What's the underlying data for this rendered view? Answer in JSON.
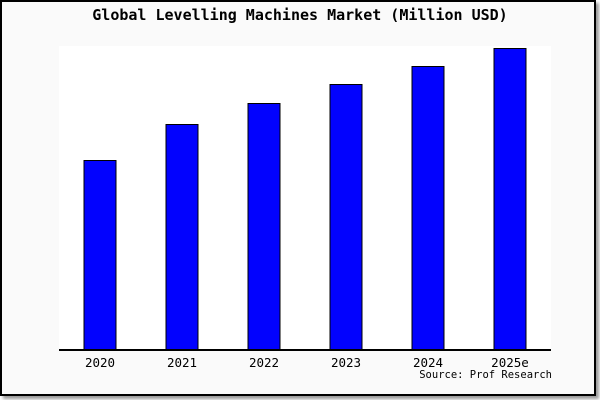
{
  "chart_data": {
    "type": "bar",
    "title": "Global Levelling Machines Market (Million USD)",
    "categories": [
      "2020",
      "2021",
      "2022",
      "2023",
      "2024",
      "2025e"
    ],
    "values": [
      62,
      74,
      81,
      87,
      93,
      99
    ],
    "values_estimated_relative_pct": true,
    "ylim": [
      0,
      100
    ],
    "xlabel": "",
    "ylabel": "",
    "y_axis_labels_visible": false,
    "grid": false,
    "legend": false,
    "source_note": "Source: Prof Research",
    "bar_color": "#0202fe",
    "bar_border_color": "#000000",
    "plot_background": "#ffffff",
    "outer_background": "#fafafa",
    "axis_color": "#000000",
    "frame_border_color": "#000000"
  }
}
